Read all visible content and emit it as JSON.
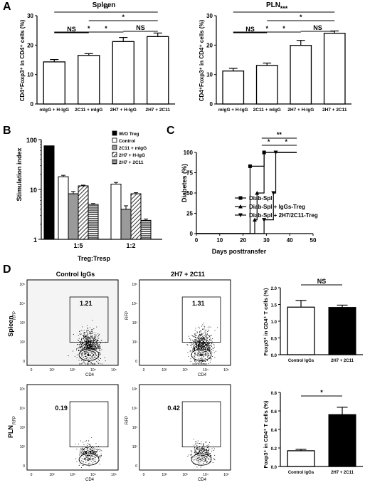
{
  "colors": {
    "black": "#000000",
    "white": "#ffffff",
    "gray": "#999999",
    "darkgray": "#444444",
    "bg": "#ffffff"
  },
  "panels": {
    "A": {
      "label": "A"
    },
    "B": {
      "label": "B"
    },
    "C": {
      "label": "C"
    },
    "D": {
      "label": "D"
    }
  },
  "chart_data": [
    {
      "id": "A-spleen",
      "type": "bar",
      "title": "Spleen",
      "ylabel": "CD4⁺Foxp3⁺ in CD4⁺ cells (%)",
      "categories": [
        "mIgG + H-IgG",
        "2C11 + mIgG",
        "2H7 + H-IgG",
        "2H7 + 2C11"
      ],
      "values": [
        14.3,
        16.5,
        21.2,
        22.9
      ],
      "errors": [
        0.8,
        0.6,
        1.4,
        1.2
      ],
      "ylim": [
        0,
        30
      ],
      "yticks": [
        "0",
        "10",
        "20",
        "30"
      ],
      "significance": [
        {
          "from": 0,
          "to": 3,
          "label": "**"
        },
        {
          "from": 1,
          "to": 3,
          "label": "*"
        },
        {
          "from": 0,
          "to": 1,
          "label": "NS"
        },
        {
          "from": 0,
          "to": 2,
          "label": "*"
        },
        {
          "from": 1,
          "to": 2,
          "label": "*"
        },
        {
          "from": 2,
          "to": 3,
          "label": "NS"
        }
      ]
    },
    {
      "id": "A-pln",
      "type": "bar",
      "title": "PLN",
      "ylabel": "CD4⁺Foxp3⁺ in CD4⁺ cells (%)",
      "categories": [
        "mIgG + H-IgG",
        "2C11 + mIgG",
        "2H7 + H-IgG",
        "2H7 + 2C11"
      ],
      "values": [
        11.2,
        13.1,
        19.9,
        24.0
      ],
      "errors": [
        0.9,
        0.8,
        1.7,
        0.8
      ],
      "ylim": [
        0,
        30
      ],
      "yticks": [
        "0",
        "10",
        "20",
        "30"
      ],
      "significance": [
        {
          "from": 0,
          "to": 3,
          "label": "***"
        },
        {
          "from": 1,
          "to": 3,
          "label": "*"
        },
        {
          "from": 0,
          "to": 1,
          "label": "NS"
        },
        {
          "from": 0,
          "to": 2,
          "label": "*"
        },
        {
          "from": 1,
          "to": 2,
          "label": "*"
        },
        {
          "from": 2,
          "to": 3,
          "label": "NS"
        }
      ]
    },
    {
      "id": "B",
      "type": "bar",
      "title": "",
      "ylabel": "Stimulation index",
      "xlabel": "Treg:Tresp",
      "yscale": "log",
      "ylim": [
        1,
        100
      ],
      "yticks": [
        "1",
        "10",
        "100"
      ],
      "categories": [
        "",
        "1:5",
        "1:2"
      ],
      "series": [
        {
          "name": "W/O Treg",
          "values": [
            75,
            null,
            null
          ],
          "errors": [
            0,
            null,
            null
          ],
          "fill": "solid-black"
        },
        {
          "name": "Control",
          "values": [
            null,
            18,
            12.8
          ],
          "errors": [
            null,
            1.2,
            1.0
          ],
          "fill": "white"
        },
        {
          "name": "2C11 + mIgG",
          "values": [
            null,
            8.2,
            4.0
          ],
          "errors": [
            null,
            0.9,
            0.7
          ],
          "fill": "gray"
        },
        {
          "name": "2H7 + H-IgG",
          "values": [
            null,
            11.8,
            8.2
          ],
          "errors": [
            null,
            0.4,
            0.4
          ],
          "fill": "diagonal-hatch"
        },
        {
          "name": "2H7 + 2C11",
          "values": [
            null,
            5.0,
            2.4
          ],
          "errors": [
            null,
            0.2,
            0.15
          ],
          "fill": "horizontal-hatch"
        }
      ],
      "legend_position": "top-right"
    },
    {
      "id": "C",
      "type": "line",
      "title": "",
      "ylabel": "Diabetes (%)",
      "xlabel": "Days posttransfer",
      "xlim": [
        0,
        50
      ],
      "ylim": [
        0,
        100
      ],
      "xticks": [
        "0",
        "10",
        "20",
        "30",
        "40",
        "50"
      ],
      "yticks": [
        "0",
        "25",
        "50",
        "75",
        "100"
      ],
      "series": [
        {
          "name": "Diab-Spl",
          "marker": "square",
          "x": [
            0,
            22,
            23,
            28,
            29,
            43
          ],
          "y": [
            0,
            0,
            83,
            83,
            100,
            100
          ]
        },
        {
          "name": "Diab-Spl + IgGs-Treg",
          "marker": "triangle-up",
          "x": [
            0,
            22,
            25,
            26,
            28,
            29,
            43
          ],
          "y": [
            0,
            0,
            17,
            50,
            50,
            100,
            100
          ]
        },
        {
          "name": "Diab-Spl + 2H7/2C11-Treg",
          "marker": "triangle-down",
          "x": [
            0,
            27,
            29,
            33,
            34,
            43
          ],
          "y": [
            0,
            0,
            17,
            50,
            100,
            100
          ]
        }
      ],
      "significance": [
        {
          "x1": 28,
          "x2": 43,
          "label": "**"
        },
        {
          "x1": 28,
          "x2": 34,
          "label": "*"
        },
        {
          "x1": 34,
          "x2": 43,
          "label": "*"
        }
      ],
      "legend_position": "right"
    },
    {
      "id": "D-spleen-bar",
      "type": "bar",
      "title": "",
      "ylabel": "Foxp3⁺ in CD4⁺ T cells (%)",
      "categories": [
        "Control IgGs",
        "2H7 + 2C11"
      ],
      "values": [
        1.42,
        1.41
      ],
      "errors": [
        0.2,
        0.07
      ],
      "fills": [
        "white",
        "black"
      ],
      "ylim": [
        0,
        2.0
      ],
      "yticks": [
        "0.0",
        "0.5",
        "1.0",
        "1.5",
        "2.0"
      ],
      "significance": [
        {
          "from": 0,
          "to": 1,
          "label": "NS"
        }
      ]
    },
    {
      "id": "D-pln-bar",
      "type": "bar",
      "title": "",
      "ylabel": "Foxp3⁺ in CD4⁺ T cells (%)",
      "categories": [
        "Control IgGs",
        "2H7 + 2C11"
      ],
      "values": [
        0.17,
        0.56
      ],
      "errors": [
        0.015,
        0.08
      ],
      "fills": [
        "white",
        "black"
      ],
      "ylim": [
        0,
        0.8
      ],
      "yticks": [
        "0.0",
        "0.2",
        "0.4",
        "0.6",
        "0.8"
      ],
      "significance": [
        {
          "from": 0,
          "to": 1,
          "label": "*"
        }
      ]
    }
  ],
  "flow": {
    "col_titles": [
      "Control IgGs",
      "2H7 + 2C11"
    ],
    "row_labels": [
      "Spleen",
      "PLN"
    ],
    "xlabel": "CD4",
    "ylabel": "RFP",
    "axis_ticks": [
      "0",
      "10²",
      "10³",
      "10⁴",
      "10⁵"
    ],
    "gates": [
      {
        "row": 0,
        "col": 0,
        "value": "1.21",
        "density": "high"
      },
      {
        "row": 0,
        "col": 1,
        "value": "1.31",
        "density": "high"
      },
      {
        "row": 1,
        "col": 0,
        "value": "0.19",
        "density": "low"
      },
      {
        "row": 1,
        "col": 1,
        "value": "0.42",
        "density": "low"
      }
    ]
  }
}
